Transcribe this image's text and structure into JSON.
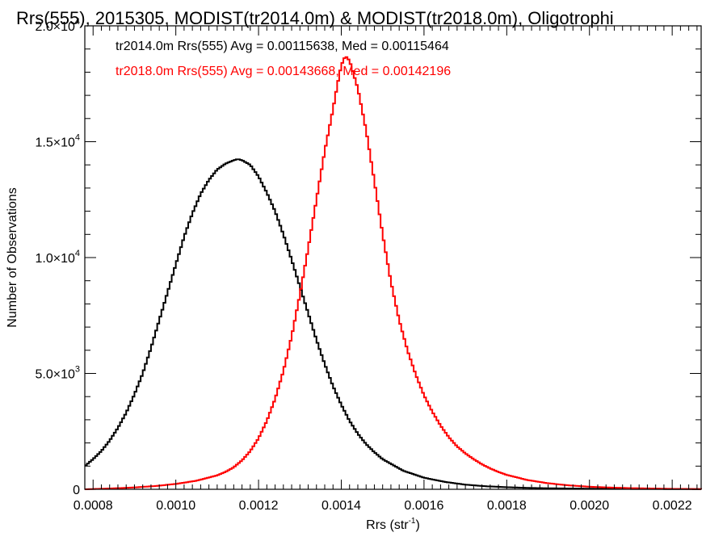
{
  "chart_data": {
    "type": "histogram-step",
    "title": "Rrs(555), 2015305, MODIST(tr2014.0m) & MODIST(tr2018.0m), Oligotrophi",
    "xlabel": "Rrs (str",
    "xlabel_sup": "-1",
    "xlabel_close": ")",
    "ylabel": "Number of Observations",
    "xlim": [
      0.00078,
      0.00227
    ],
    "ylim": [
      0,
      20000
    ],
    "xticks": [
      {
        "value": 0.0008,
        "label": "0.0008"
      },
      {
        "value": 0.001,
        "label": "0.0010"
      },
      {
        "value": 0.0012,
        "label": "0.0012"
      },
      {
        "value": 0.0014,
        "label": "0.0014"
      },
      {
        "value": 0.0016,
        "label": "0.0016"
      },
      {
        "value": 0.0018,
        "label": "0.0018"
      },
      {
        "value": 0.002,
        "label": "0.0020"
      },
      {
        "value": 0.0022,
        "label": "0.0022"
      }
    ],
    "yticks": [
      {
        "value": 0,
        "mant": "0",
        "exp": ""
      },
      {
        "value": 5000,
        "mant": "5.0×10",
        "exp": "3"
      },
      {
        "value": 10000,
        "mant": "1.0×10",
        "exp": "4"
      },
      {
        "value": 15000,
        "mant": "1.5×10",
        "exp": "4"
      },
      {
        "value": 20000,
        "mant": "2.0×10",
        "exp": "4"
      }
    ],
    "annotations": [
      {
        "text": "tr2014.0m Rrs(555) Avg = 0.00115638, Med = 0.00115464",
        "color": "#000000"
      },
      {
        "text": "tr2018.0m Rrs(555) Avg = 0.00143668, Med = 0.00142196",
        "color": "#ff0000"
      }
    ],
    "series": [
      {
        "color": "#000000",
        "x": [
          0.00078,
          0.0008,
          0.00082,
          0.00084,
          0.00086,
          0.00088,
          0.0009,
          0.00092,
          0.00094,
          0.00096,
          0.00098,
          0.001,
          0.00102,
          0.00104,
          0.00106,
          0.00108,
          0.0011,
          0.00112,
          0.00114,
          0.00115,
          0.00116,
          0.00118,
          0.0012,
          0.00122,
          0.00124,
          0.00126,
          0.00128,
          0.0013,
          0.00132,
          0.00134,
          0.00136,
          0.00138,
          0.0014,
          0.00142,
          0.00144,
          0.00146,
          0.00148,
          0.0015,
          0.00155,
          0.0016,
          0.00165,
          0.0017,
          0.00175,
          0.0018,
          0.00185,
          0.0019,
          0.00195,
          0.002,
          0.0021,
          0.0022,
          0.00227
        ],
        "y": [
          1000,
          1300,
          1650,
          2100,
          2650,
          3300,
          4100,
          5000,
          6100,
          7300,
          8500,
          9700,
          10900,
          11900,
          12750,
          13350,
          13800,
          14050,
          14200,
          14250,
          14200,
          14000,
          13500,
          12800,
          12000,
          11000,
          9900,
          8750,
          7600,
          6450,
          5400,
          4450,
          3650,
          2950,
          2400,
          1950,
          1600,
          1300,
          800,
          500,
          320,
          200,
          130,
          90,
          60,
          45,
          35,
          25,
          15,
          10,
          5
        ]
      },
      {
        "color": "#ff0000",
        "x": [
          0.00078,
          0.00085,
          0.0009,
          0.00095,
          0.001,
          0.00105,
          0.0011,
          0.00112,
          0.00114,
          0.00116,
          0.00118,
          0.0012,
          0.00122,
          0.00124,
          0.00126,
          0.00128,
          0.0013,
          0.00132,
          0.00134,
          0.00136,
          0.00138,
          0.00139,
          0.0014,
          0.00141,
          0.00142,
          0.00144,
          0.00146,
          0.00148,
          0.0015,
          0.00152,
          0.00154,
          0.00156,
          0.00158,
          0.0016,
          0.00162,
          0.00164,
          0.00166,
          0.00168,
          0.0017,
          0.00172,
          0.00174,
          0.00176,
          0.00178,
          0.0018,
          0.00185,
          0.0019,
          0.00195,
          0.002,
          0.00205,
          0.0021,
          0.00215,
          0.0022,
          0.00227
        ],
        "y": [
          0,
          40,
          80,
          140,
          230,
          370,
          600,
          750,
          950,
          1250,
          1650,
          2200,
          2950,
          3900,
          5100,
          6600,
          8400,
          10400,
          12500,
          14600,
          16400,
          17400,
          18300,
          18700,
          18500,
          17300,
          15500,
          13300,
          11000,
          8950,
          7300,
          6000,
          4950,
          4050,
          3350,
          2750,
          2250,
          1850,
          1550,
          1300,
          1080,
          900,
          750,
          620,
          400,
          260,
          170,
          110,
          75,
          50,
          35,
          20,
          10
        ]
      }
    ]
  }
}
